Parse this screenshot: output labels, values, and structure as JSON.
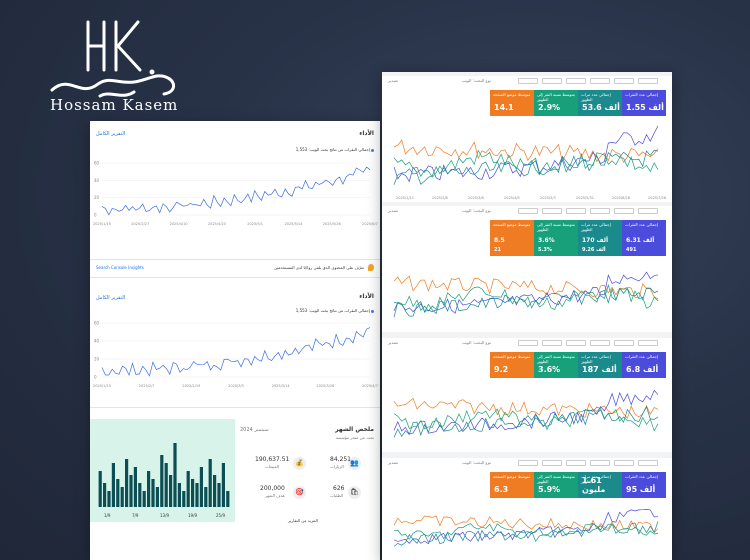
{
  "brand": {
    "latin_name": "Hossam Kasem",
    "monogram": "HK"
  },
  "left_panel": {
    "section1": {
      "title": "الأداء",
      "link": "التقرير الكامل",
      "legend": "إجمالي النقرات من نتائج بحث الويب: 1,553",
      "y_ticks": [
        "60",
        "40",
        "20",
        "0"
      ],
      "x_ticks": [
        "2025/1/15",
        "2025/2/27",
        "2025/4/10",
        "2025/4/20",
        "2025/5/1",
        "2025/5/14",
        "2025/5/26",
        "2025/6/7"
      ]
    },
    "insights": {
      "text": "تعرّف على المحتوى الذي يلقى رواجًا لدى المستخدمين",
      "link": "Search Console Insights"
    },
    "section2": {
      "title": "الأداء",
      "link": "التقرير الكامل",
      "legend": "إجمالي النقرات من نتائج بحث الويب: 1,553",
      "y_ticks": [
        "60",
        "40",
        "20",
        "0"
      ],
      "x_ticks": [
        "2025/1/15",
        "2025/2/7",
        "2025/2/19",
        "2025/3/3",
        "2025/3/14",
        "2025/3/26",
        "2025/4/7"
      ]
    },
    "summary": {
      "title": "ملخص الشهر",
      "subtitle": "بحث عن متجر مؤسسة",
      "period": "سبتمبر 2024",
      "stats": [
        {
          "label": "الزيارات",
          "value": "84,251"
        },
        {
          "label": "المبيعات",
          "value": "190,637.51"
        },
        {
          "label": "الطلبات",
          "value": "626"
        },
        {
          "label": "هدف الشهر",
          "value": "200,000"
        }
      ],
      "more_link": "المزيد من التقارير",
      "bar_x_ticks": [
        "1/9",
        "7/9",
        "13/9",
        "19/9",
        "25/9"
      ]
    }
  },
  "right_panel": {
    "export_label": "تصدير",
    "filter_label": "نوع البحث: الويب",
    "panels": [
      {
        "tiles": [
          {
            "label": "إجمالي عدد النقرات",
            "value": "1.55 ألف",
            "color": "#4b4bdc"
          },
          {
            "label": "إجمالي عدد مرات الظهور",
            "value": "53.6 ألف",
            "color": "#1a8a8c"
          },
          {
            "label": "متوسط نسبة النقر إلى الظهور",
            "value": "2.9%",
            "color": "#17a07a"
          },
          {
            "label": "متوسط موضع الصفحة",
            "value": "14.1",
            "color": "#ef7c22"
          }
        ],
        "x_ticks": [
          "2025/1/11",
          "2025/2/8",
          "2025/3/8",
          "2025/4/5",
          "2025/5/3",
          "2025/5/31",
          "2025/6/28",
          "2025/7/26"
        ]
      },
      {
        "tiles": [
          {
            "label": "إجمالي عدد النقرات",
            "value": "6.31 ألف",
            "color": "#4b4bdc",
            "sub": "491"
          },
          {
            "label": "إجمالي عدد مرات الظهور",
            "value": "170 ألف",
            "color": "#1a8a8c",
            "sub": "9.26 ألف"
          },
          {
            "label": "متوسط نسبة النقر إلى الظهور",
            "value": "3.6%",
            "color": "#17a07a",
            "sub": "5.3%"
          },
          {
            "label": "متوسط موضع الصفحة",
            "value": "8.5",
            "color": "#ef7c22",
            "sub": "21"
          }
        ]
      },
      {
        "tiles": [
          {
            "label": "إجمالي عدد النقرات",
            "value": "6.8 ألف",
            "color": "#4b4bdc"
          },
          {
            "label": "إجمالي عدد مرات الظهور",
            "value": "187 ألف",
            "color": "#1a8a8c"
          },
          {
            "label": "متوسط نسبة النقر إلى الظهور",
            "value": "3.6%",
            "color": "#17a07a"
          },
          {
            "label": "متوسط موضع الصفحة",
            "value": "9.2",
            "color": "#ef7c22"
          }
        ]
      },
      {
        "tiles": [
          {
            "label": "إجمالي عدد النقرات",
            "value": "95 ألف",
            "color": "#4b4bdc"
          },
          {
            "label": "إجمالي عدد مرات الظهور",
            "value": "1.61 مليون",
            "color": "#1a8a8c"
          },
          {
            "label": "متوسط نسبة النقر إلى الظهور",
            "value": "5.9%",
            "color": "#17a07a"
          },
          {
            "label": "متوسط موضع الصفحة",
            "value": "6.3",
            "color": "#ef7c22"
          }
        ]
      }
    ]
  },
  "colors": {
    "clicks": "#4b4bdc",
    "impressions": "#1a8a8c",
    "ctr": "#17a07a",
    "position": "#ef7c22",
    "teal_bar": "#0b4f55",
    "mint_bg": "#d8f3ea"
  }
}
